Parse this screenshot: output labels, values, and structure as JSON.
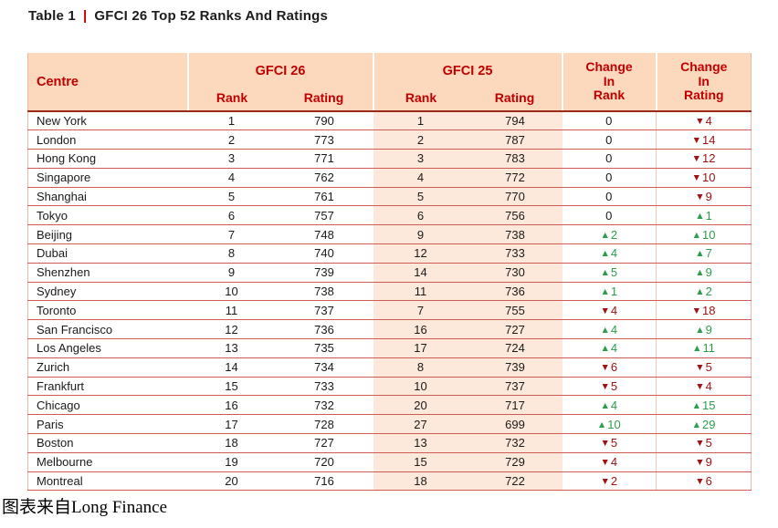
{
  "title": {
    "label": "Table 1",
    "separator": "|",
    "text": "GFCI 26 Top 52 Ranks And Ratings"
  },
  "table": {
    "headers": {
      "centre": "Centre",
      "gfci26_group": "GFCI 26",
      "gfci25_group": "GFCI 25",
      "gfci26_rank": "Rank",
      "gfci26_rating": "Rating",
      "gfci25_rank": "Rank",
      "gfci25_rating": "Rating",
      "change_in_rank": "Change\nIn\nRank",
      "change_in_rating": "Change\nIn\nRating"
    },
    "rows": [
      {
        "centre": "New York",
        "gfci26_rank": "1",
        "gfci26_rating": "790",
        "gfci25_rank": "1",
        "gfci25_rating": "794",
        "change_in_rank": {
          "dir": "none",
          "value": "0"
        },
        "change_in_rating": {
          "dir": "down",
          "value": "4"
        }
      },
      {
        "centre": "London",
        "gfci26_rank": "2",
        "gfci26_rating": "773",
        "gfci25_rank": "2",
        "gfci25_rating": "787",
        "change_in_rank": {
          "dir": "none",
          "value": "0"
        },
        "change_in_rating": {
          "dir": "down",
          "value": "14"
        }
      },
      {
        "centre": "Hong Kong",
        "gfci26_rank": "3",
        "gfci26_rating": "771",
        "gfci25_rank": "3",
        "gfci25_rating": "783",
        "change_in_rank": {
          "dir": "none",
          "value": "0"
        },
        "change_in_rating": {
          "dir": "down",
          "value": "12"
        }
      },
      {
        "centre": "Singapore",
        "gfci26_rank": "4",
        "gfci26_rating": "762",
        "gfci25_rank": "4",
        "gfci25_rating": "772",
        "change_in_rank": {
          "dir": "none",
          "value": "0"
        },
        "change_in_rating": {
          "dir": "down",
          "value": "10"
        }
      },
      {
        "centre": "Shanghai",
        "gfci26_rank": "5",
        "gfci26_rating": "761",
        "gfci25_rank": "5",
        "gfci25_rating": "770",
        "change_in_rank": {
          "dir": "none",
          "value": "0"
        },
        "change_in_rating": {
          "dir": "down",
          "value": "9"
        }
      },
      {
        "centre": "Tokyo",
        "gfci26_rank": "6",
        "gfci26_rating": "757",
        "gfci25_rank": "6",
        "gfci25_rating": "756",
        "change_in_rank": {
          "dir": "none",
          "value": "0"
        },
        "change_in_rating": {
          "dir": "up",
          "value": "1"
        }
      },
      {
        "centre": "Beijing",
        "gfci26_rank": "7",
        "gfci26_rating": "748",
        "gfci25_rank": "9",
        "gfci25_rating": "738",
        "change_in_rank": {
          "dir": "up",
          "value": "2"
        },
        "change_in_rating": {
          "dir": "up",
          "value": "10"
        }
      },
      {
        "centre": "Dubai",
        "gfci26_rank": "8",
        "gfci26_rating": "740",
        "gfci25_rank": "12",
        "gfci25_rating": "733",
        "change_in_rank": {
          "dir": "up",
          "value": "4"
        },
        "change_in_rating": {
          "dir": "up",
          "value": "7"
        }
      },
      {
        "centre": "Shenzhen",
        "gfci26_rank": "9",
        "gfci26_rating": "739",
        "gfci25_rank": "14",
        "gfci25_rating": "730",
        "change_in_rank": {
          "dir": "up",
          "value": "5"
        },
        "change_in_rating": {
          "dir": "up",
          "value": "9"
        }
      },
      {
        "centre": "Sydney",
        "gfci26_rank": "10",
        "gfci26_rating": "738",
        "gfci25_rank": "11",
        "gfci25_rating": "736",
        "change_in_rank": {
          "dir": "up",
          "value": "1"
        },
        "change_in_rating": {
          "dir": "up",
          "value": "2"
        }
      },
      {
        "centre": "Toronto",
        "gfci26_rank": "11",
        "gfci26_rating": "737",
        "gfci25_rank": "7",
        "gfci25_rating": "755",
        "change_in_rank": {
          "dir": "down",
          "value": "4"
        },
        "change_in_rating": {
          "dir": "down",
          "value": "18"
        }
      },
      {
        "centre": "San Francisco",
        "gfci26_rank": "12",
        "gfci26_rating": "736",
        "gfci25_rank": "16",
        "gfci25_rating": "727",
        "change_in_rank": {
          "dir": "up",
          "value": "4"
        },
        "change_in_rating": {
          "dir": "up",
          "value": "9"
        }
      },
      {
        "centre": "Los Angeles",
        "gfci26_rank": "13",
        "gfci26_rating": "735",
        "gfci25_rank": "17",
        "gfci25_rating": "724",
        "change_in_rank": {
          "dir": "up",
          "value": "4"
        },
        "change_in_rating": {
          "dir": "up",
          "value": "11"
        }
      },
      {
        "centre": "Zurich",
        "gfci26_rank": "14",
        "gfci26_rating": "734",
        "gfci25_rank": "8",
        "gfci25_rating": "739",
        "change_in_rank": {
          "dir": "down",
          "value": "6"
        },
        "change_in_rating": {
          "dir": "down",
          "value": "5"
        }
      },
      {
        "centre": "Frankfurt",
        "gfci26_rank": "15",
        "gfci26_rating": "733",
        "gfci25_rank": "10",
        "gfci25_rating": "737",
        "change_in_rank": {
          "dir": "down",
          "value": "5"
        },
        "change_in_rating": {
          "dir": "down",
          "value": "4"
        }
      },
      {
        "centre": "Chicago",
        "gfci26_rank": "16",
        "gfci26_rating": "732",
        "gfci25_rank": "20",
        "gfci25_rating": "717",
        "change_in_rank": {
          "dir": "up",
          "value": "4"
        },
        "change_in_rating": {
          "dir": "up",
          "value": "15"
        }
      },
      {
        "centre": "Paris",
        "gfci26_rank": "17",
        "gfci26_rating": "728",
        "gfci25_rank": "27",
        "gfci25_rating": "699",
        "change_in_rank": {
          "dir": "up",
          "value": "10"
        },
        "change_in_rating": {
          "dir": "up",
          "value": "29"
        }
      },
      {
        "centre": "Boston",
        "gfci26_rank": "18",
        "gfci26_rating": "727",
        "gfci25_rank": "13",
        "gfci25_rating": "732",
        "change_in_rank": {
          "dir": "down",
          "value": "5"
        },
        "change_in_rating": {
          "dir": "down",
          "value": "5"
        }
      },
      {
        "centre": "Melbourne",
        "gfci26_rank": "19",
        "gfci26_rating": "720",
        "gfci25_rank": "15",
        "gfci25_rating": "729",
        "change_in_rank": {
          "dir": "down",
          "value": "4"
        },
        "change_in_rating": {
          "dir": "down",
          "value": "9"
        }
      },
      {
        "centre": "Montreal",
        "gfci26_rank": "20",
        "gfci26_rating": "716",
        "gfci25_rank": "18",
        "gfci25_rating": "722",
        "change_in_rank": {
          "dir": "down",
          "value": "2"
        },
        "change_in_rating": {
          "dir": "down",
          "value": "6"
        }
      }
    ]
  },
  "caption": "图表来自Long Finance",
  "icons": {
    "up_arrow": "▲",
    "down_arrow": "▼"
  },
  "colors": {
    "accent_red": "#c00000",
    "header_bg": "#fcd8bd",
    "band_bg": "#fde9db",
    "row_line": "#cf5b52",
    "header_underline": "#9a2b1c",
    "up_green": "#2c9e4b",
    "down_red": "#a11212",
    "faint_divider": "#f4c3b2",
    "edge_border": "#f1b7a6"
  },
  "chart_data": {
    "type": "table",
    "title": "Table 1 | GFCI 26 Top 52 Ranks And Ratings",
    "columns": [
      "Centre",
      "GFCI 26 Rank",
      "GFCI 26 Rating",
      "GFCI 25 Rank",
      "GFCI 25 Rating",
      "Change In Rank",
      "Change In Rating"
    ],
    "rows": [
      [
        "New York",
        1,
        790,
        1,
        794,
        "0",
        "▼4"
      ],
      [
        "London",
        2,
        773,
        2,
        787,
        "0",
        "▼14"
      ],
      [
        "Hong Kong",
        3,
        771,
        3,
        783,
        "0",
        "▼12"
      ],
      [
        "Singapore",
        4,
        762,
        4,
        772,
        "0",
        "▼10"
      ],
      [
        "Shanghai",
        5,
        761,
        5,
        770,
        "0",
        "▼9"
      ],
      [
        "Tokyo",
        6,
        757,
        6,
        756,
        "0",
        "▲1"
      ],
      [
        "Beijing",
        7,
        748,
        9,
        738,
        "▲2",
        "▲10"
      ],
      [
        "Dubai",
        8,
        740,
        12,
        733,
        "▲4",
        "▲7"
      ],
      [
        "Shenzhen",
        9,
        739,
        14,
        730,
        "▲5",
        "▲9"
      ],
      [
        "Sydney",
        10,
        738,
        11,
        736,
        "▲1",
        "▲2"
      ],
      [
        "Toronto",
        11,
        737,
        7,
        755,
        "▼4",
        "▼18"
      ],
      [
        "San Francisco",
        12,
        736,
        16,
        727,
        "▲4",
        "▲9"
      ],
      [
        "Los Angeles",
        13,
        735,
        17,
        724,
        "▲4",
        "▲11"
      ],
      [
        "Zurich",
        14,
        734,
        8,
        739,
        "▼6",
        "▼5"
      ],
      [
        "Frankfurt",
        15,
        733,
        10,
        737,
        "▼5",
        "▼4"
      ],
      [
        "Chicago",
        16,
        732,
        20,
        717,
        "▲4",
        "▲15"
      ],
      [
        "Paris",
        17,
        728,
        27,
        699,
        "▲10",
        "▲29"
      ],
      [
        "Boston",
        18,
        727,
        13,
        732,
        "▼5",
        "▼5"
      ],
      [
        "Melbourne",
        19,
        720,
        15,
        729,
        "▼4",
        "▼9"
      ],
      [
        "Montreal",
        20,
        716,
        18,
        722,
        "▼2",
        "▼6"
      ]
    ],
    "source_note": "图表来自Long Finance"
  }
}
